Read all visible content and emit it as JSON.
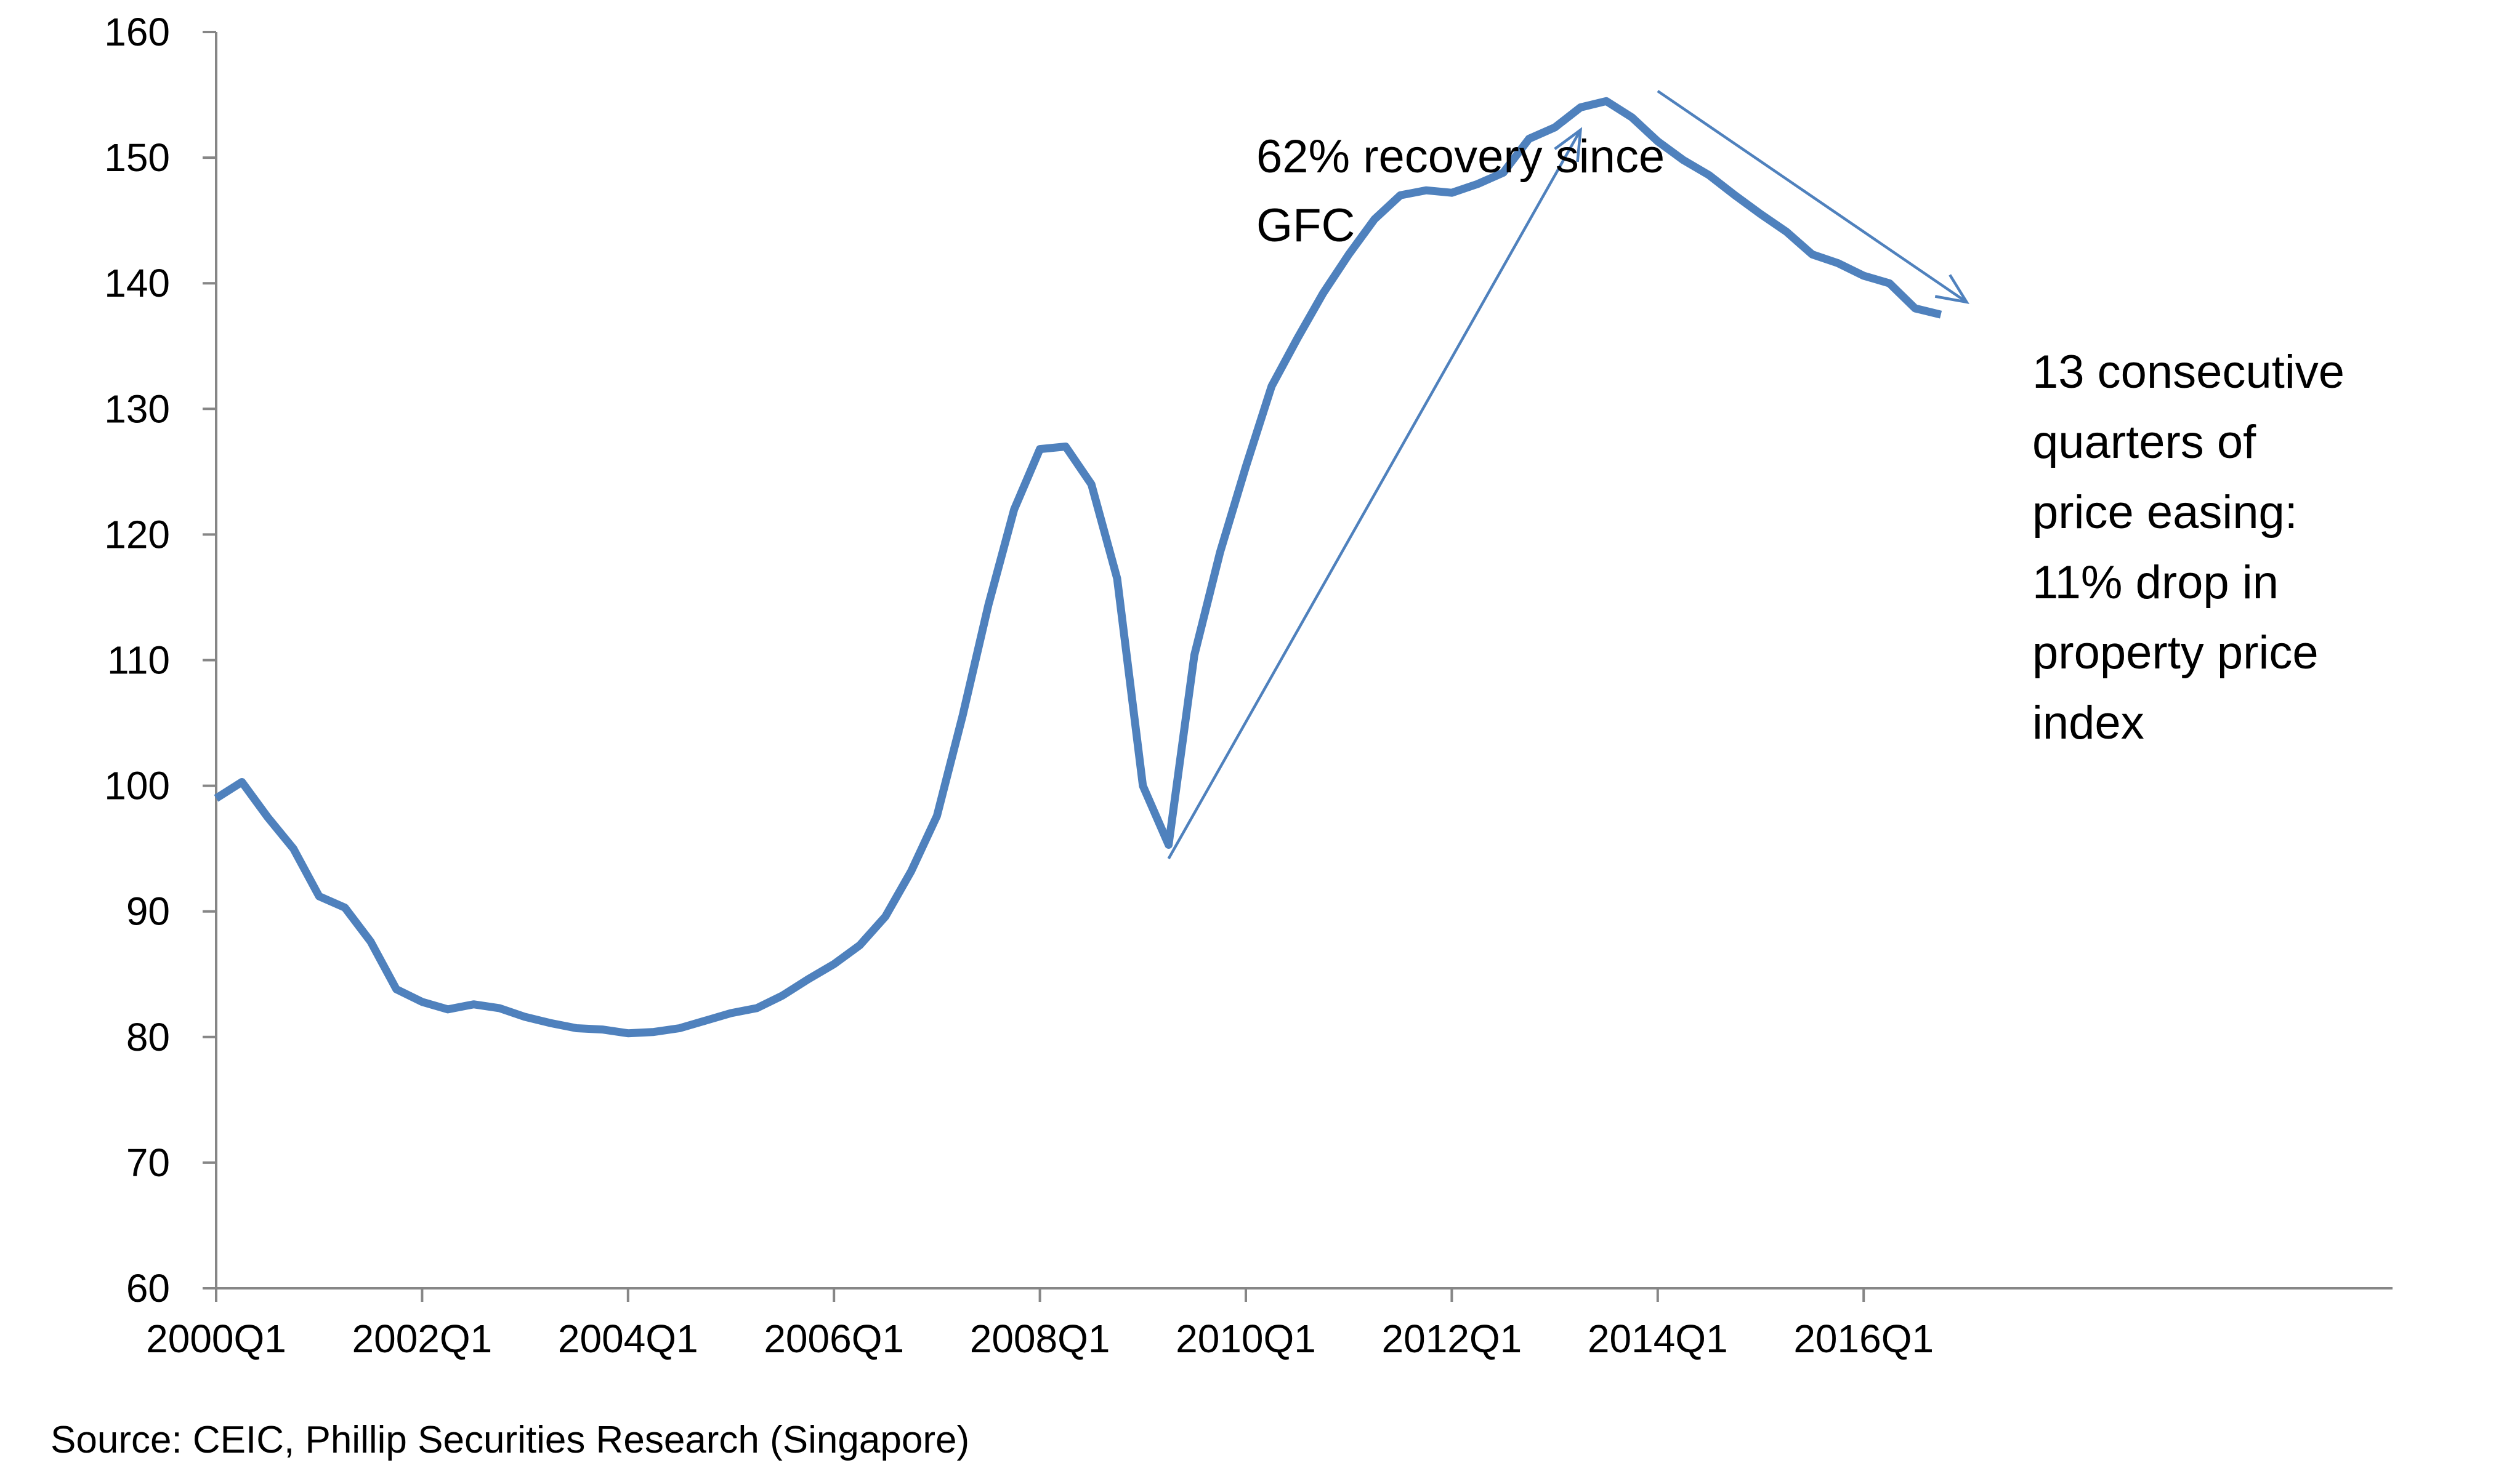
{
  "chart_data": {
    "type": "line",
    "title": "",
    "xlabel": "",
    "ylabel": "",
    "ylim": [
      60,
      160
    ],
    "y_ticks": [
      60,
      70,
      80,
      90,
      100,
      110,
      120,
      130,
      140,
      150,
      160
    ],
    "x_tick_labels": [
      "2000Q1",
      "2002Q1",
      "2004Q1",
      "2006Q1",
      "2008Q1",
      "2010Q1",
      "2012Q1",
      "2014Q1",
      "2016Q1"
    ],
    "x_start": "2000Q1",
    "grid": false,
    "legend": "none",
    "series": [
      {
        "color": "#4F81BD",
        "x": [
          "2000Q1",
          "2000Q2",
          "2000Q3",
          "2000Q4",
          "2001Q1",
          "2001Q2",
          "2001Q3",
          "2001Q4",
          "2002Q1",
          "2002Q2",
          "2002Q3",
          "2002Q4",
          "2003Q1",
          "2003Q2",
          "2003Q3",
          "2003Q4",
          "2004Q1",
          "2004Q2",
          "2004Q3",
          "2004Q4",
          "2005Q1",
          "2005Q2",
          "2005Q3",
          "2005Q4",
          "2006Q1",
          "2006Q2",
          "2006Q3",
          "2006Q4",
          "2007Q1",
          "2007Q2",
          "2007Q3",
          "2007Q4",
          "2008Q1",
          "2008Q2",
          "2008Q3",
          "2008Q4",
          "2009Q1",
          "2009Q2",
          "2009Q3",
          "2009Q4",
          "2010Q1",
          "2010Q2",
          "2010Q3",
          "2010Q4",
          "2011Q1",
          "2011Q2",
          "2011Q3",
          "2011Q4",
          "2012Q1",
          "2012Q2",
          "2012Q3",
          "2012Q4",
          "2013Q1",
          "2013Q2",
          "2013Q3",
          "2013Q4",
          "2014Q1",
          "2014Q2",
          "2014Q3",
          "2014Q4",
          "2015Q1",
          "2015Q2",
          "2015Q3",
          "2015Q4",
          "2016Q1",
          "2016Q2",
          "2016Q3",
          "2016Q4"
        ],
        "values": [
          99.0,
          100.3,
          97.5,
          95.0,
          91.2,
          90.3,
          87.6,
          83.8,
          82.8,
          82.2,
          82.6,
          82.3,
          81.6,
          81.1,
          80.7,
          80.6,
          80.3,
          80.4,
          80.7,
          81.3,
          81.9,
          82.3,
          83.3,
          84.6,
          85.8,
          87.3,
          89.6,
          93.2,
          97.6,
          105.6,
          114.4,
          122.0,
          126.8,
          127.0,
          124.0,
          116.5,
          100.0,
          95.3,
          110.4,
          118.6,
          125.4,
          131.8,
          135.6,
          139.2,
          142.3,
          145.1,
          147.0,
          147.4,
          147.2,
          147.9,
          148.8,
          151.5,
          152.4,
          154.0,
          154.5,
          153.2,
          151.3,
          149.8,
          148.6,
          147.0,
          145.5,
          144.1,
          142.3,
          141.6,
          140.6,
          140.0,
          138.0,
          137.5
        ]
      }
    ],
    "annotations": [
      {
        "lines": [
          "62% recovery since",
          "GFC"
        ]
      },
      {
        "lines": [
          "13 consecutive",
          "quarters of",
          "price easing:",
          "11% drop in",
          "property price",
          "index"
        ]
      }
    ],
    "arrows": [
      {
        "color": "#4F81BD",
        "from": {
          "x": "2009Q2",
          "y": 94.2
        },
        "to": {
          "x": "2013Q2",
          "y": 152.2
        }
      },
      {
        "color": "#4F81BD",
        "from": {
          "x": "2014Q1",
          "y": 155.3
        },
        "to": {
          "x": "2017Q1",
          "y": 138.5
        }
      }
    ],
    "axis_color": "#868686",
    "line_color": "#4F81BD"
  },
  "source": "Source: CEIC, Phillip Securities Research (Singapore)"
}
